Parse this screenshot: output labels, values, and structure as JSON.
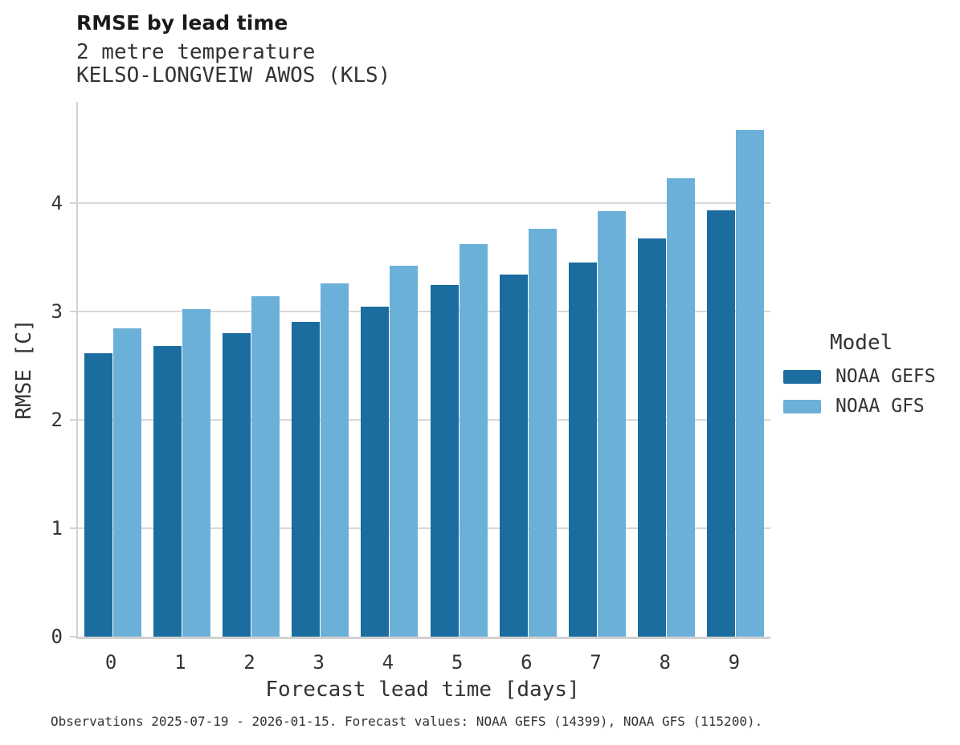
{
  "chart_data": {
    "type": "bar",
    "title": "RMSE by lead time",
    "subtitle": [
      "2 metre temperature",
      "KELSO-LONGVEIW AWOS (KLS)"
    ],
    "xlabel": "Forecast lead time [days]",
    "ylabel": "RMSE [C]",
    "categories": [
      "0",
      "1",
      "2",
      "3",
      "4",
      "5",
      "6",
      "7",
      "8",
      "9"
    ],
    "series": [
      {
        "name": "NOAA GEFS",
        "color": "#1a6d9e",
        "values": [
          2.61,
          2.68,
          2.8,
          2.9,
          3.04,
          3.24,
          3.34,
          3.45,
          3.67,
          3.93
        ]
      },
      {
        "name": "NOAA GFS",
        "color": "#6bb0d9",
        "values": [
          2.84,
          3.02,
          3.14,
          3.26,
          3.42,
          3.62,
          3.76,
          3.92,
          4.23,
          4.67
        ]
      }
    ],
    "yticks": [
      0,
      1,
      2,
      3,
      4
    ],
    "ylim": [
      0,
      4.93
    ],
    "grid": "horizontal",
    "legend_title": "Model",
    "legend_position": "right",
    "caption": "Observations 2025-07-19 - 2026-01-15. Forecast values: NOAA GEFS (14399), NOAA GFS (115200).",
    "colors": {
      "grid": "#d8d8d8",
      "spine": "#d2d2d2",
      "title_text": "#1a1a1a",
      "body_text": "#333333",
      "background": "#ffffff"
    }
  }
}
